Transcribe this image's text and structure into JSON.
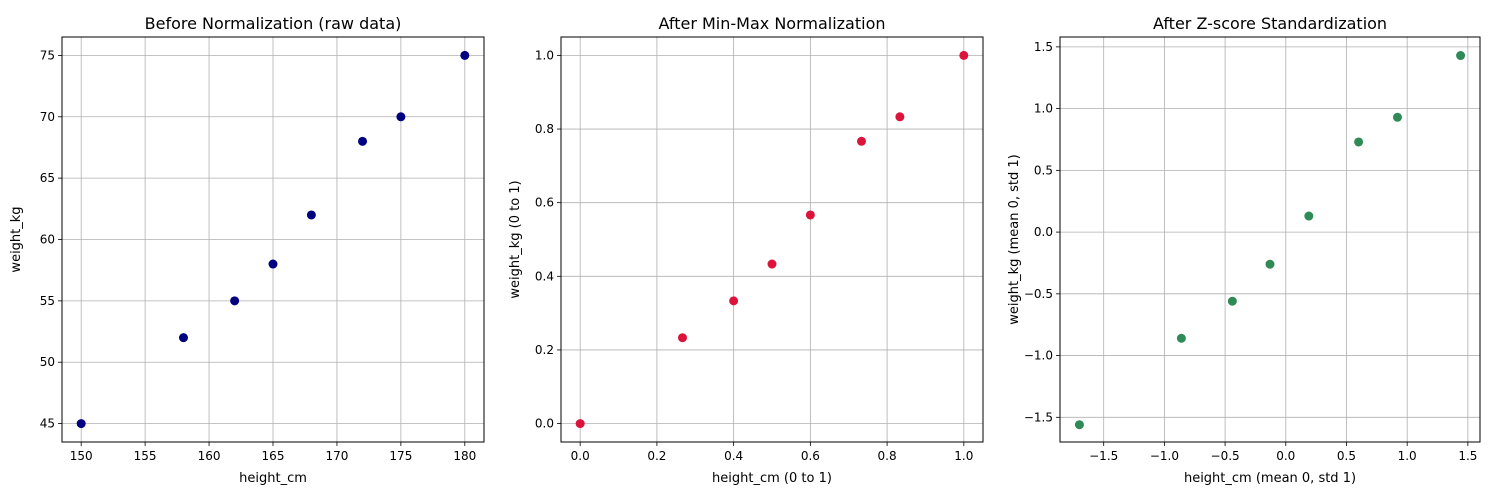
{
  "chart_data": [
    {
      "type": "scatter",
      "title": "Before Normalization (raw data)",
      "xlabel": "height_cm",
      "ylabel": "weight_kg",
      "xlim": [
        148.5,
        181.5
      ],
      "ylim": [
        43.5,
        76.5
      ],
      "xticks": [
        150,
        155,
        160,
        165,
        170,
        175,
        180
      ],
      "xtick_labels": [
        "150",
        "155",
        "160",
        "165",
        "170",
        "175",
        "180"
      ],
      "yticks": [
        45,
        50,
        55,
        60,
        65,
        70,
        75
      ],
      "ytick_labels": [
        "45",
        "50",
        "55",
        "60",
        "65",
        "70",
        "75"
      ],
      "grid": true,
      "color": "#000080",
      "x": [
        150,
        158,
        162,
        165,
        168,
        172,
        175,
        180
      ],
      "y": [
        45,
        52,
        55,
        58,
        62,
        68,
        70,
        75
      ]
    },
    {
      "type": "scatter",
      "title": "After Min-Max Normalization",
      "xlabel": "height_cm (0 to 1)",
      "ylabel": "weight_kg (0 to 1)",
      "xlim": [
        -0.05,
        1.05
      ],
      "ylim": [
        -0.05,
        1.05
      ],
      "xticks": [
        0,
        0.2,
        0.4,
        0.6,
        0.8,
        1.0
      ],
      "xtick_labels": [
        "0.0",
        "0.2",
        "0.4",
        "0.6",
        "0.8",
        "1.0"
      ],
      "yticks": [
        0,
        0.2,
        0.4,
        0.6,
        0.8,
        1.0
      ],
      "ytick_labels": [
        "0.0",
        "0.2",
        "0.4",
        "0.6",
        "0.8",
        "1.0"
      ],
      "grid": true,
      "color": "#dc143c",
      "x": [
        0,
        0.2667,
        0.4,
        0.5,
        0.6,
        0.7333,
        0.8333,
        1.0
      ],
      "y": [
        0,
        0.2333,
        0.3333,
        0.4333,
        0.5667,
        0.7667,
        0.8333,
        1.0
      ]
    },
    {
      "type": "scatter",
      "title": "After Z-score Standardization",
      "xlabel": "height_cm (mean 0, std 1)",
      "ylabel": "weight_kg (mean 0, std 1)",
      "xlim": [
        -1.86,
        1.6
      ],
      "ylim": [
        -1.7,
        1.58
      ],
      "xticks": [
        -1.5,
        -1.0,
        -0.5,
        0,
        0.5,
        1.0,
        1.5
      ],
      "xtick_labels": [
        "−1.5",
        "−1.0",
        "−0.5",
        "0.0",
        "0.5",
        "1.0",
        "1.5"
      ],
      "yticks": [
        -1.5,
        -1.0,
        -0.5,
        0,
        0.5,
        1.0,
        1.5
      ],
      "ytick_labels": [
        "−1.5",
        "−1.0",
        "−0.5",
        "0.0",
        "0.5",
        "1.0",
        "1.5"
      ],
      "grid": true,
      "color": "#2e8b57",
      "x": [
        -1.7,
        -0.86,
        -0.44,
        -0.13,
        0.19,
        0.6,
        0.92,
        1.44
      ],
      "y": [
        -1.56,
        -0.86,
        -0.56,
        -0.26,
        0.13,
        0.73,
        0.93,
        1.43
      ]
    }
  ]
}
